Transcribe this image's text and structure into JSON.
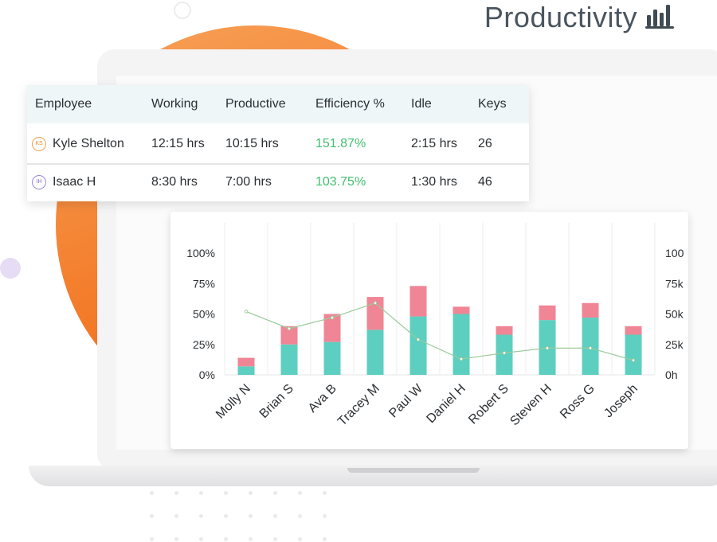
{
  "header": {
    "title": "Productivity",
    "icon": "bar-chart-icon"
  },
  "colors": {
    "accent_orange": "#f37b29",
    "productive_bar": "#5ccfc0",
    "idle_bar": "#f08595",
    "efficiency_green": "#3fbf6f",
    "line": "#9bc99a"
  },
  "table": {
    "columns": [
      "Employee",
      "Working",
      "Productive",
      "Efficiency %",
      "Idle",
      "Keys"
    ],
    "rows": [
      {
        "initials": "KS",
        "name": "Kyle Shelton",
        "working": "12:15 hrs",
        "productive": "10:15 hrs",
        "efficiency": "151.87%",
        "idle": "2:15 hrs",
        "keys": "26"
      },
      {
        "initials": "IH",
        "name": "Isaac H",
        "working": "8:30 hrs",
        "productive": "7:00 hrs",
        "efficiency": "103.75%",
        "idle": "1:30 hrs",
        "keys": "46"
      }
    ]
  },
  "chart_data": {
    "type": "bar",
    "categories": [
      "Molly N",
      "Brian S",
      "Ava B",
      "Tracey M",
      "Paul W",
      "Daniel H",
      "Robert S",
      "Steven H",
      "Ross G",
      "Joseph"
    ],
    "series": [
      {
        "values": [
          7,
          25,
          27,
          37,
          48,
          50,
          33,
          45,
          47,
          33
        ]
      },
      {
        "values": [
          7,
          15,
          23,
          27,
          25,
          6,
          7,
          12,
          12,
          7
        ]
      }
    ],
    "line": {
      "values": [
        52,
        38,
        47,
        59,
        29,
        13,
        18,
        22,
        22,
        12
      ]
    },
    "yticks_left": [
      "100%",
      "75%",
      "50%",
      "25%",
      "0%"
    ],
    "yticks_right": [
      "100",
      "75k",
      "50k",
      "25k",
      "0h"
    ],
    "ylim": [
      0,
      100
    ],
    "stacked": true,
    "grid": true
  }
}
